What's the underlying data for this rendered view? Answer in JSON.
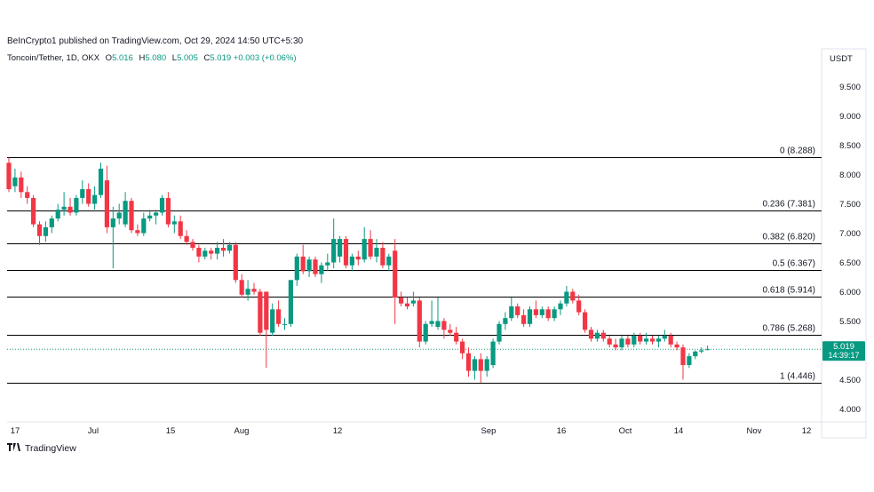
{
  "header": {
    "publisher": "BeInCrypto1 published on TradingView.com, Oct 29, 2024 14:50 UTC+5:30",
    "symbol": "Toncoin/Tether, 1D, OKX",
    "ohlc": {
      "o_label": "O",
      "o": "5.016",
      "h_label": "H",
      "h": "5.080",
      "l_label": "L",
      "l": "5.005",
      "c_label": "C",
      "c": "5.019",
      "change": "+0.003 (+0.06%)"
    }
  },
  "currency": "USDT",
  "brand": {
    "logo": "𝟏𝟕",
    "name": "TradingView"
  },
  "price_tag": {
    "value": "5.019",
    "countdown": "14:39:17"
  },
  "chart_data": {
    "type": "candlestick",
    "y_ticks": [
      "9.500",
      "9.000",
      "8.500",
      "8.000",
      "7.500",
      "7.000",
      "6.500",
      "6.000",
      "5.500",
      "5.000",
      "4.500",
      "4.000"
    ],
    "x_ticks": [
      "17",
      "Jul",
      "15",
      "Aug",
      "12",
      "Sep",
      "16",
      "Oct",
      "14",
      "Nov",
      "12"
    ],
    "ylim": [
      3.85,
      10.0
    ],
    "fib_levels": [
      {
        "ratio": "0",
        "price": 8.288,
        "label": "0 (8.288)"
      },
      {
        "ratio": "0.236",
        "price": 7.381,
        "label": "0.236 (7.381)"
      },
      {
        "ratio": "0.382",
        "price": 6.82,
        "label": "0.382 (6.820)"
      },
      {
        "ratio": "0.5",
        "price": 6.367,
        "label": "0.5 (6.367)"
      },
      {
        "ratio": "0.618",
        "price": 5.914,
        "label": "0.618 (5.914)"
      },
      {
        "ratio": "0.786",
        "price": 5.268,
        "label": "0.786 (5.268)"
      },
      {
        "ratio": "1",
        "price": 4.446,
        "label": "1 (4.446)"
      }
    ],
    "last_price": 5.019,
    "colors": {
      "up": "#089981",
      "down": "#F23645",
      "fib": "#000000",
      "last": "#089981"
    },
    "candles": [
      {
        "o": 8.2,
        "h": 8.288,
        "l": 7.7,
        "c": 7.75
      },
      {
        "o": 7.8,
        "h": 8.1,
        "l": 7.7,
        "c": 7.95
      },
      {
        "o": 7.95,
        "h": 8.05,
        "l": 7.6,
        "c": 7.7
      },
      {
        "o": 7.7,
        "h": 7.8,
        "l": 7.5,
        "c": 7.6
      },
      {
        "o": 7.6,
        "h": 7.65,
        "l": 7.1,
        "c": 7.15
      },
      {
        "o": 7.15,
        "h": 7.2,
        "l": 6.8,
        "c": 6.95
      },
      {
        "o": 6.95,
        "h": 7.2,
        "l": 6.85,
        "c": 7.1
      },
      {
        "o": 7.1,
        "h": 7.3,
        "l": 7.0,
        "c": 7.25
      },
      {
        "o": 7.25,
        "h": 7.5,
        "l": 7.2,
        "c": 7.4
      },
      {
        "o": 7.4,
        "h": 7.7,
        "l": 7.3,
        "c": 7.45
      },
      {
        "o": 7.45,
        "h": 7.6,
        "l": 7.3,
        "c": 7.35
      },
      {
        "o": 7.35,
        "h": 7.65,
        "l": 7.3,
        "c": 7.6
      },
      {
        "o": 7.6,
        "h": 7.9,
        "l": 7.5,
        "c": 7.75
      },
      {
        "o": 7.75,
        "h": 7.85,
        "l": 7.45,
        "c": 7.5
      },
      {
        "o": 7.5,
        "h": 7.8,
        "l": 7.4,
        "c": 7.65
      },
      {
        "o": 7.65,
        "h": 8.2,
        "l": 7.6,
        "c": 8.1
      },
      {
        "o": 7.9,
        "h": 8.15,
        "l": 7.0,
        "c": 7.1
      },
      {
        "o": 7.1,
        "h": 7.45,
        "l": 6.4,
        "c": 7.25
      },
      {
        "o": 7.25,
        "h": 7.5,
        "l": 7.15,
        "c": 7.35
      },
      {
        "o": 7.15,
        "h": 7.7,
        "l": 7.1,
        "c": 7.55
      },
      {
        "o": 7.55,
        "h": 7.6,
        "l": 7.0,
        "c": 7.05
      },
      {
        "o": 7.05,
        "h": 7.15,
        "l": 6.95,
        "c": 7.0
      },
      {
        "o": 7.0,
        "h": 7.35,
        "l": 6.95,
        "c": 7.25
      },
      {
        "o": 7.25,
        "h": 7.4,
        "l": 7.2,
        "c": 7.3
      },
      {
        "o": 7.3,
        "h": 7.4,
        "l": 7.15,
        "c": 7.35
      },
      {
        "o": 7.35,
        "h": 7.65,
        "l": 7.3,
        "c": 7.6
      },
      {
        "o": 7.6,
        "h": 7.7,
        "l": 7.1,
        "c": 7.15
      },
      {
        "o": 7.15,
        "h": 7.3,
        "l": 7.0,
        "c": 7.2
      },
      {
        "o": 7.2,
        "h": 7.3,
        "l": 6.9,
        "c": 6.95
      },
      {
        "o": 6.95,
        "h": 7.05,
        "l": 6.8,
        "c": 6.85
      },
      {
        "o": 6.85,
        "h": 6.9,
        "l": 6.7,
        "c": 6.75
      },
      {
        "o": 6.75,
        "h": 6.8,
        "l": 6.5,
        "c": 6.6
      },
      {
        "o": 6.6,
        "h": 6.75,
        "l": 6.55,
        "c": 6.7
      },
      {
        "o": 6.7,
        "h": 6.75,
        "l": 6.55,
        "c": 6.65
      },
      {
        "o": 6.65,
        "h": 6.85,
        "l": 6.55,
        "c": 6.75
      },
      {
        "o": 6.75,
        "h": 6.9,
        "l": 6.6,
        "c": 6.7
      },
      {
        "o": 6.7,
        "h": 6.85,
        "l": 6.65,
        "c": 6.8
      },
      {
        "o": 6.8,
        "h": 6.85,
        "l": 6.15,
        "c": 6.2
      },
      {
        "o": 6.2,
        "h": 6.3,
        "l": 5.9,
        "c": 5.95
      },
      {
        "o": 5.95,
        "h": 6.2,
        "l": 5.85,
        "c": 6.05
      },
      {
        "o": 6.05,
        "h": 6.15,
        "l": 5.95,
        "c": 6.0
      },
      {
        "o": 6.0,
        "h": 6.05,
        "l": 5.25,
        "c": 5.3
      },
      {
        "o": 6.0,
        "h": 6.0,
        "l": 4.7,
        "c": 5.35
      },
      {
        "o": 5.3,
        "h": 5.8,
        "l": 5.25,
        "c": 5.7
      },
      {
        "o": 5.7,
        "h": 5.85,
        "l": 5.4,
        "c": 5.45
      },
      {
        "o": 5.45,
        "h": 5.55,
        "l": 5.35,
        "c": 5.45
      },
      {
        "o": 5.45,
        "h": 6.2,
        "l": 5.4,
        "c": 6.2
      },
      {
        "o": 6.2,
        "h": 6.65,
        "l": 6.1,
        "c": 6.6
      },
      {
        "o": 6.6,
        "h": 6.8,
        "l": 6.3,
        "c": 6.35
      },
      {
        "o": 6.35,
        "h": 6.6,
        "l": 6.25,
        "c": 6.55
      },
      {
        "o": 6.55,
        "h": 6.6,
        "l": 6.25,
        "c": 6.3
      },
      {
        "o": 6.3,
        "h": 6.5,
        "l": 6.15,
        "c": 6.45
      },
      {
        "o": 6.45,
        "h": 6.65,
        "l": 6.35,
        "c": 6.5
      },
      {
        "o": 6.5,
        "h": 7.25,
        "l": 6.4,
        "c": 6.9
      },
      {
        "o": 6.6,
        "h": 6.95,
        "l": 6.5,
        "c": 6.9
      },
      {
        "o": 6.9,
        "h": 6.95,
        "l": 6.4,
        "c": 6.45
      },
      {
        "o": 6.45,
        "h": 6.65,
        "l": 6.35,
        "c": 6.6
      },
      {
        "o": 6.6,
        "h": 6.7,
        "l": 6.45,
        "c": 6.55
      },
      {
        "o": 6.55,
        "h": 7.1,
        "l": 6.5,
        "c": 6.9
      },
      {
        "o": 6.9,
        "h": 7.05,
        "l": 6.55,
        "c": 6.6
      },
      {
        "o": 6.6,
        "h": 6.9,
        "l": 6.5,
        "c": 6.75
      },
      {
        "o": 6.75,
        "h": 6.85,
        "l": 6.4,
        "c": 6.45
      },
      {
        "o": 6.45,
        "h": 6.65,
        "l": 6.35,
        "c": 6.6
      },
      {
        "o": 6.7,
        "h": 6.9,
        "l": 5.45,
        "c": 5.9
      },
      {
        "o": 5.9,
        "h": 6.0,
        "l": 5.75,
        "c": 5.8
      },
      {
        "o": 5.8,
        "h": 5.9,
        "l": 5.7,
        "c": 5.75
      },
      {
        "o": 5.8,
        "h": 6.0,
        "l": 5.75,
        "c": 5.85
      },
      {
        "o": 5.85,
        "h": 5.9,
        "l": 5.05,
        "c": 5.15
      },
      {
        "o": 5.15,
        "h": 5.5,
        "l": 5.1,
        "c": 5.45
      },
      {
        "o": 5.45,
        "h": 5.85,
        "l": 5.4,
        "c": 5.5
      },
      {
        "o": 5.4,
        "h": 5.9,
        "l": 5.35,
        "c": 5.5
      },
      {
        "o": 5.5,
        "h": 5.55,
        "l": 5.2,
        "c": 5.35
      },
      {
        "o": 5.35,
        "h": 5.45,
        "l": 5.25,
        "c": 5.3
      },
      {
        "o": 5.3,
        "h": 5.4,
        "l": 5.1,
        "c": 5.15
      },
      {
        "o": 5.15,
        "h": 5.2,
        "l": 4.85,
        "c": 4.95
      },
      {
        "o": 4.95,
        "h": 5.05,
        "l": 4.55,
        "c": 4.65
      },
      {
        "o": 4.65,
        "h": 4.9,
        "l": 4.5,
        "c": 4.85
      },
      {
        "o": 4.85,
        "h": 4.95,
        "l": 4.45,
        "c": 4.65
      },
      {
        "o": 4.65,
        "h": 4.9,
        "l": 4.55,
        "c": 4.85
      },
      {
        "o": 4.75,
        "h": 5.2,
        "l": 4.7,
        "c": 5.15
      },
      {
        "o": 5.15,
        "h": 5.5,
        "l": 5.1,
        "c": 5.45
      },
      {
        "o": 5.45,
        "h": 5.65,
        "l": 5.35,
        "c": 5.55
      },
      {
        "o": 5.55,
        "h": 5.9,
        "l": 5.5,
        "c": 5.75
      },
      {
        "o": 5.75,
        "h": 5.8,
        "l": 5.55,
        "c": 5.6
      },
      {
        "o": 5.6,
        "h": 5.7,
        "l": 5.4,
        "c": 5.45
      },
      {
        "o": 5.45,
        "h": 5.75,
        "l": 5.4,
        "c": 5.7
      },
      {
        "o": 5.7,
        "h": 5.85,
        "l": 5.55,
        "c": 5.6
      },
      {
        "o": 5.6,
        "h": 5.75,
        "l": 5.55,
        "c": 5.7
      },
      {
        "o": 5.7,
        "h": 5.75,
        "l": 5.5,
        "c": 5.55
      },
      {
        "o": 5.55,
        "h": 5.75,
        "l": 5.5,
        "c": 5.7
      },
      {
        "o": 5.7,
        "h": 5.85,
        "l": 5.6,
        "c": 5.8
      },
      {
        "o": 5.8,
        "h": 6.1,
        "l": 5.75,
        "c": 6.0
      },
      {
        "o": 6.0,
        "h": 6.05,
        "l": 5.8,
        "c": 5.85
      },
      {
        "o": 5.85,
        "h": 5.95,
        "l": 5.6,
        "c": 5.65
      },
      {
        "o": 5.65,
        "h": 5.7,
        "l": 5.3,
        "c": 5.35
      },
      {
        "o": 5.35,
        "h": 5.4,
        "l": 5.15,
        "c": 5.2
      },
      {
        "o": 5.2,
        "h": 5.35,
        "l": 5.15,
        "c": 5.3
      },
      {
        "o": 5.3,
        "h": 5.35,
        "l": 5.15,
        "c": 5.2
      },
      {
        "o": 5.2,
        "h": 5.25,
        "l": 5.05,
        "c": 5.1
      },
      {
        "o": 5.1,
        "h": 5.2,
        "l": 5.0,
        "c": 5.05
      },
      {
        "o": 5.05,
        "h": 5.25,
        "l": 5.0,
        "c": 5.2
      },
      {
        "o": 5.2,
        "h": 5.25,
        "l": 5.05,
        "c": 5.1
      },
      {
        "o": 5.1,
        "h": 5.3,
        "l": 5.05,
        "c": 5.25
      },
      {
        "o": 5.25,
        "h": 5.3,
        "l": 5.1,
        "c": 5.15
      },
      {
        "o": 5.15,
        "h": 5.3,
        "l": 5.1,
        "c": 5.2
      },
      {
        "o": 5.2,
        "h": 5.25,
        "l": 5.1,
        "c": 5.15
      },
      {
        "o": 5.15,
        "h": 5.25,
        "l": 5.05,
        "c": 5.2
      },
      {
        "o": 5.2,
        "h": 5.35,
        "l": 5.15,
        "c": 5.25
      },
      {
        "o": 5.25,
        "h": 5.3,
        "l": 5.05,
        "c": 5.1
      },
      {
        "o": 5.1,
        "h": 5.15,
        "l": 5.0,
        "c": 5.05
      },
      {
        "o": 5.05,
        "h": 5.1,
        "l": 4.5,
        "c": 4.75
      },
      {
        "o": 4.75,
        "h": 4.95,
        "l": 4.7,
        "c": 4.9
      },
      {
        "o": 4.9,
        "h": 5.0,
        "l": 4.85,
        "c": 4.98
      },
      {
        "o": 4.98,
        "h": 5.05,
        "l": 4.95,
        "c": 5.0
      },
      {
        "o": 5.016,
        "h": 5.08,
        "l": 5.005,
        "c": 5.019
      }
    ]
  }
}
